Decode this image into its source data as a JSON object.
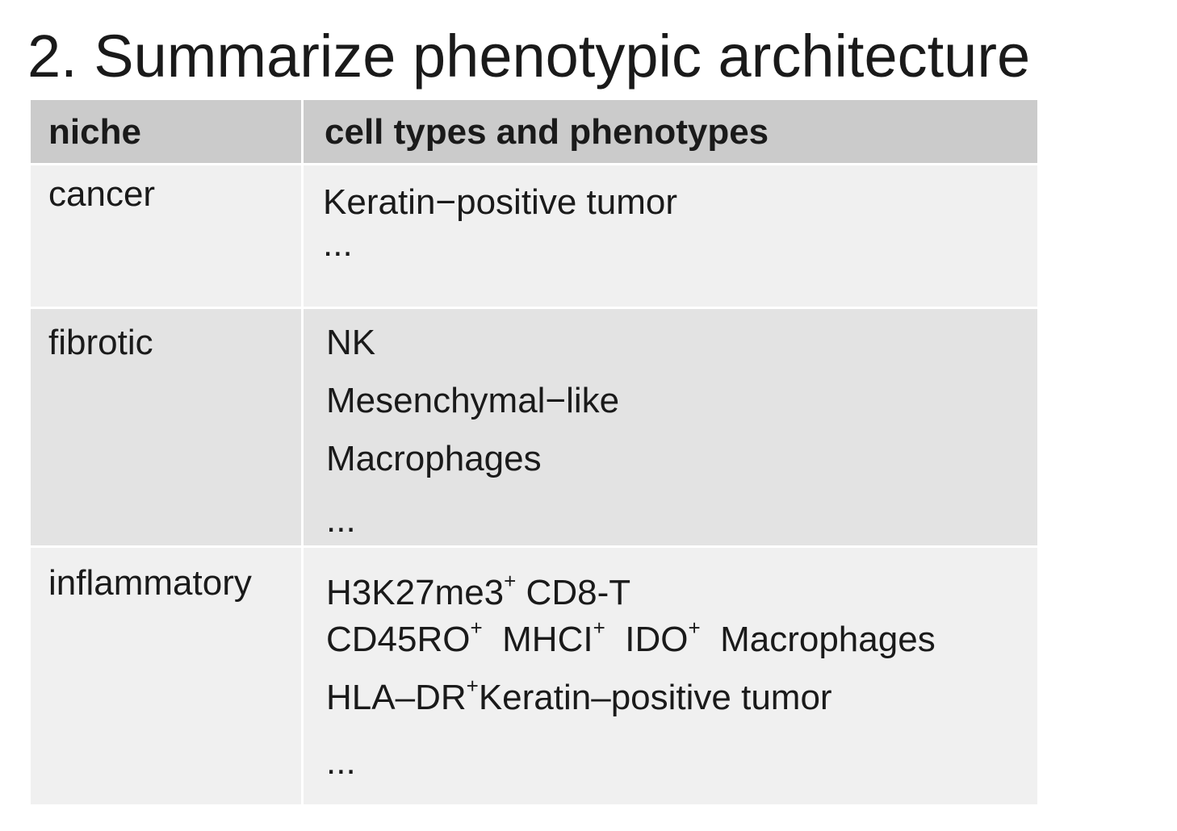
{
  "title": "2. Summarize phenotypic architecture",
  "table": {
    "headers": {
      "niche": "niche",
      "types": "cell types and phenotypes"
    },
    "rows": [
      {
        "niche": "cancer",
        "items": [
          "Keratin−positive tumor",
          "..."
        ]
      },
      {
        "niche": "fibrotic",
        "items": [
          "NK",
          "Mesenchymal−like",
          "Macrophages",
          "..."
        ]
      },
      {
        "niche": "inflammatory",
        "items": [
          {
            "parts": [
              {
                "t": "H3K27me3"
              },
              {
                "sup": "+"
              },
              {
                "t": " CD8-T"
              }
            ]
          },
          {
            "parts": [
              {
                "t": "CD45RO"
              },
              {
                "sup": "+"
              },
              {
                "t": "  MHCI"
              },
              {
                "sup": "+"
              },
              {
                "t": "  IDO"
              },
              {
                "sup": "+"
              },
              {
                "t": "  Macrophages"
              }
            ]
          },
          {
            "parts": [
              {
                "t": "HLA–DR"
              },
              {
                "sup": "+"
              },
              {
                "t": "Keratin–positive tumor"
              }
            ]
          },
          "..."
        ]
      }
    ]
  }
}
